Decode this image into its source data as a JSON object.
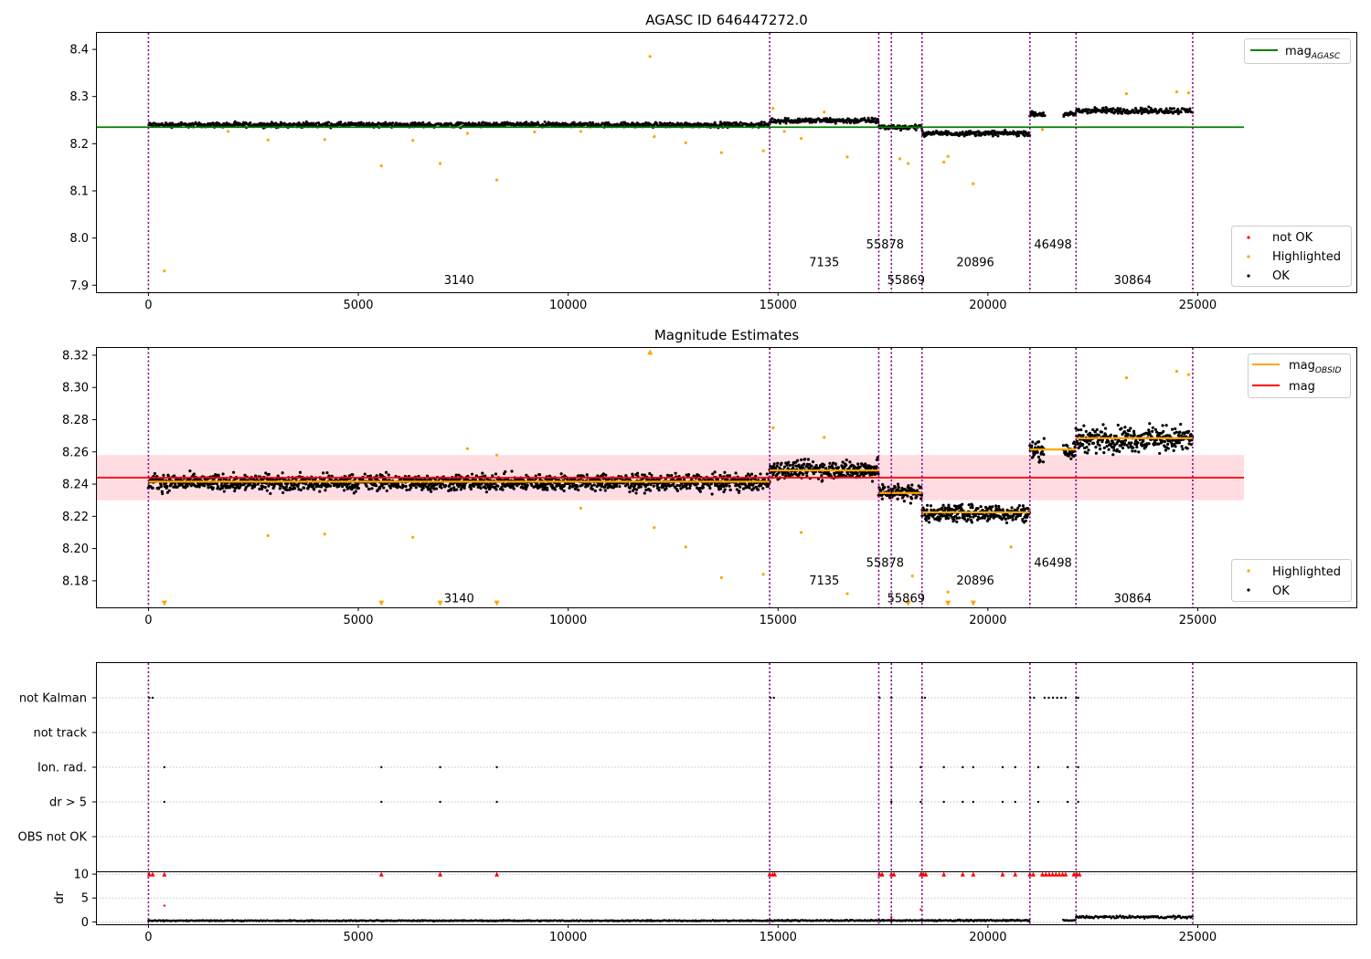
{
  "colors": {
    "ok": "#000000",
    "highlighted": "#ffa500",
    "not_ok": "#ff0000",
    "mag_agasc": "#008000",
    "mag": "#ff0000",
    "mag_obsid": "#ffa500",
    "obsid_line": "#800080",
    "mag_band": "#ffc0cb"
  },
  "chart_data": [
    {
      "type": "scatter",
      "title": "AGASC ID 646447272.0",
      "xlim": [
        -1250,
        28800
      ],
      "ylim": [
        7.885,
        8.435
      ],
      "xticks": [
        0,
        5000,
        10000,
        15000,
        20000,
        25000
      ],
      "yticks": [
        7.9,
        8.0,
        8.1,
        8.2,
        8.3,
        8.4
      ],
      "ytick_labels": [
        "7.9",
        "8.0",
        "8.1",
        "8.2",
        "8.3",
        "8.4"
      ],
      "mag_agasc": 8.235,
      "mag_agasc_xrange": [
        -1250,
        26100
      ],
      "obsid_boundaries": [
        0,
        14800,
        17400,
        17700,
        18430,
        21000,
        22100,
        24880
      ],
      "obsid_labels": [
        {
          "label": "3140",
          "x": 7400,
          "y": 7.91
        },
        {
          "label": "7135",
          "x": 16100,
          "y": 7.948
        },
        {
          "label": "55878",
          "x": 17550,
          "y": 7.986
        },
        {
          "label": "55869",
          "x": 18050,
          "y": 7.91
        },
        {
          "label": "20896",
          "x": 19700,
          "y": 7.948
        },
        {
          "label": "46498",
          "x": 21550,
          "y": 7.986
        },
        {
          "label": "30864",
          "x": 23450,
          "y": 7.91
        }
      ],
      "segments": [
        {
          "x0": 0,
          "x1": 14800,
          "center": 8.24,
          "spread": 0.008
        },
        {
          "x0": 14800,
          "x1": 17400,
          "center": 8.249,
          "spread": 0.009
        },
        {
          "x0": 17400,
          "x1": 18430,
          "center": 8.235,
          "spread": 0.008
        },
        {
          "x0": 18430,
          "x1": 21000,
          "center": 8.222,
          "spread": 0.008
        },
        {
          "x0": 21000,
          "x1": 21350,
          "center": 8.262,
          "spread": 0.009
        },
        {
          "x0": 21800,
          "x1": 22100,
          "center": 8.262,
          "spread": 0.008
        },
        {
          "x0": 22100,
          "x1": 24880,
          "center": 8.27,
          "spread": 0.01
        }
      ],
      "highlighted_points": [
        [
          380,
          7.93
        ],
        [
          5550,
          8.153
        ],
        [
          6950,
          8.158
        ],
        [
          8300,
          8.123
        ],
        [
          11950,
          8.385
        ],
        [
          13650,
          8.181
        ],
        [
          14650,
          8.185
        ],
        [
          15550,
          8.211
        ],
        [
          16650,
          8.172
        ],
        [
          17900,
          8.168
        ],
        [
          18100,
          8.158
        ],
        [
          18950,
          8.161
        ],
        [
          19050,
          8.173
        ],
        [
          19650,
          8.115
        ],
        [
          21300,
          8.23
        ],
        [
          23300,
          8.306
        ],
        [
          24500,
          8.31
        ],
        [
          24780,
          8.308
        ],
        [
          12800,
          8.202
        ],
        [
          12050,
          8.215
        ],
        [
          10300,
          8.226
        ],
        [
          2850,
          8.208
        ],
        [
          4200,
          8.209
        ],
        [
          6300,
          8.207
        ],
        [
          15150,
          8.226
        ],
        [
          9200,
          8.225
        ],
        [
          7600,
          8.222
        ],
        [
          1900,
          8.226
        ],
        [
          14880,
          8.275
        ],
        [
          16100,
          8.267
        ]
      ],
      "legends": [
        {
          "position": "top-right",
          "entries": [
            {
              "label": "mag",
              "sub": "AGASC",
              "marker": "line",
              "color": "#008000"
            }
          ]
        },
        {
          "position": "lower-right",
          "entries": [
            {
              "label": "not OK",
              "marker": "dot",
              "color": "#ff0000"
            },
            {
              "label": "Highlighted",
              "marker": "dot",
              "color": "#ffa500"
            },
            {
              "label": "OK",
              "marker": "dot",
              "color": "#000000"
            }
          ]
        }
      ]
    },
    {
      "type": "scatter",
      "title": "Magnitude Estimates",
      "xlim": [
        -1250,
        28800
      ],
      "ylim": [
        8.1635,
        8.3245
      ],
      "xticks": [
        0,
        5000,
        10000,
        15000,
        20000,
        25000
      ],
      "yticks": [
        8.18,
        8.2,
        8.22,
        8.24,
        8.26,
        8.28,
        8.3,
        8.32
      ],
      "ytick_labels": [
        "8.18",
        "8.20",
        "8.22",
        "8.24",
        "8.26",
        "8.28",
        "8.30",
        "8.32"
      ],
      "mag": 8.244,
      "mag_band": [
        8.23,
        8.258
      ],
      "mag_xrange": [
        -1250,
        26100
      ],
      "mag_obsid": [
        {
          "x0": 0,
          "x1": 14800,
          "value": 8.2415
        },
        {
          "x0": 14800,
          "x1": 17400,
          "value": 8.2485
        },
        {
          "x0": 17400,
          "x1": 18430,
          "value": 8.2345
        },
        {
          "x0": 18430,
          "x1": 21000,
          "value": 8.2225
        },
        {
          "x0": 21000,
          "x1": 22100,
          "value": 8.2615
        },
        {
          "x0": 22100,
          "x1": 24880,
          "value": 8.2685
        }
      ],
      "obsid_boundaries": [
        0,
        14800,
        17400,
        17700,
        18430,
        21000,
        22100,
        24880
      ],
      "obsid_labels": [
        {
          "label": "3140",
          "x": 7400,
          "y": 8.169
        },
        {
          "label": "7135",
          "x": 16100,
          "y": 8.18
        },
        {
          "label": "55878",
          "x": 17550,
          "y": 8.191
        },
        {
          "label": "55869",
          "x": 18050,
          "y": 8.169
        },
        {
          "label": "20896",
          "x": 19700,
          "y": 8.18
        },
        {
          "label": "46498",
          "x": 21550,
          "y": 8.191
        },
        {
          "label": "30864",
          "x": 23450,
          "y": 8.169
        }
      ],
      "segments": [
        {
          "x0": 0,
          "x1": 14800,
          "center": 8.241,
          "spread": 0.008
        },
        {
          "x0": 14800,
          "x1": 17400,
          "center": 8.249,
          "spread": 0.009
        },
        {
          "x0": 17400,
          "x1": 18430,
          "center": 8.235,
          "spread": 0.008
        },
        {
          "x0": 18430,
          "x1": 21000,
          "center": 8.222,
          "spread": 0.008
        },
        {
          "x0": 21000,
          "x1": 21350,
          "center": 8.261,
          "spread": 0.01
        },
        {
          "x0": 21800,
          "x1": 22100,
          "center": 8.261,
          "spread": 0.008
        },
        {
          "x0": 22100,
          "x1": 24880,
          "center": 8.268,
          "spread": 0.012
        }
      ],
      "highlighted_points": [
        [
          13650,
          8.182
        ],
        [
          14650,
          8.184
        ],
        [
          15550,
          8.21
        ],
        [
          16650,
          8.172
        ],
        [
          18200,
          8.183
        ],
        [
          19050,
          8.173
        ],
        [
          20550,
          8.201
        ],
        [
          12800,
          8.201
        ],
        [
          6300,
          8.207
        ],
        [
          2850,
          8.208
        ],
        [
          4200,
          8.209
        ],
        [
          12050,
          8.213
        ],
        [
          10300,
          8.225
        ],
        [
          23300,
          8.306
        ],
        [
          24500,
          8.31
        ],
        [
          24780,
          8.308
        ],
        [
          14880,
          8.275
        ],
        [
          16100,
          8.269
        ],
        [
          8300,
          8.258
        ],
        [
          7600,
          8.262
        ]
      ],
      "triangle_up": [
        [
          11950,
          8.322
        ]
      ],
      "triangle_down": [
        [
          380,
          8.166
        ],
        [
          5550,
          8.166
        ],
        [
          6950,
          8.166
        ],
        [
          8300,
          8.166
        ],
        [
          18100,
          8.166
        ],
        [
          19050,
          8.166
        ],
        [
          19650,
          8.166
        ]
      ],
      "legends": [
        {
          "position": "top-right",
          "entries": [
            {
              "label": "mag",
              "sub": "OBSID",
              "marker": "line",
              "color": "#ffa500"
            },
            {
              "label": "mag",
              "marker": "line",
              "color": "#ff0000"
            }
          ]
        },
        {
          "position": "lower-right",
          "entries": [
            {
              "label": "Highlighted",
              "marker": "dot",
              "color": "#ffa500"
            },
            {
              "label": "OK",
              "marker": "dot",
              "color": "#000000"
            }
          ]
        }
      ]
    },
    {
      "type": "scatter",
      "xlim": [
        -1250,
        28800
      ],
      "xticks": [
        0,
        5000,
        10000,
        15000,
        20000,
        25000
      ],
      "flag_rows": [
        "not Kalman",
        "not track",
        "Ion. rad.",
        "dr > 5",
        "OBS not OK"
      ],
      "obsid_boundaries": [
        0,
        14800,
        17400,
        17700,
        18430,
        21000,
        22100,
        24880
      ],
      "flag_points": {
        "not Kalman": [
          [
            20,
            0
          ],
          [
            100,
            0
          ],
          [
            14820,
            0
          ],
          [
            14900,
            0
          ],
          [
            17420,
            0
          ],
          [
            17700,
            0
          ],
          [
            18430,
            0
          ],
          [
            18500,
            0
          ],
          [
            21010,
            0
          ],
          [
            21100,
            0
          ],
          [
            21350,
            0
          ],
          [
            21450,
            0
          ],
          [
            21550,
            0
          ],
          [
            21650,
            0
          ],
          [
            21750,
            0
          ],
          [
            21850,
            0
          ],
          [
            22100,
            0
          ],
          [
            22150,
            0
          ]
        ],
        "Ion. rad.": [
          [
            380,
            0
          ],
          [
            5550,
            0
          ],
          [
            6950,
            0
          ],
          [
            8300,
            0
          ],
          [
            17700,
            0
          ],
          [
            18400,
            0
          ],
          [
            18950,
            0
          ],
          [
            19400,
            0
          ],
          [
            19650,
            0
          ],
          [
            20350,
            0
          ],
          [
            20650,
            0
          ],
          [
            21200,
            0
          ],
          [
            21900,
            0
          ],
          [
            22150,
            0
          ]
        ],
        "dr > 5": [
          [
            380,
            0
          ],
          [
            5550,
            0
          ],
          [
            6950,
            0
          ],
          [
            8300,
            0
          ],
          [
            17700,
            0
          ],
          [
            18400,
            0
          ],
          [
            18950,
            0
          ],
          [
            19400,
            0
          ],
          [
            19650,
            0
          ],
          [
            20350,
            0
          ],
          [
            20650,
            0
          ],
          [
            21200,
            0
          ],
          [
            21900,
            0
          ],
          [
            22150,
            0
          ]
        ]
      },
      "dr": {
        "ylabel": "dr",
        "ylim": [
          -0.5,
          10.4
        ],
        "yticks": [
          0,
          5,
          10
        ],
        "ytick_labels": [
          "0",
          "5",
          "10"
        ],
        "clipped_points": [
          [
            20,
            10
          ],
          [
            100,
            10
          ],
          [
            380,
            10
          ],
          [
            5550,
            10
          ],
          [
            6950,
            10
          ],
          [
            8300,
            10
          ],
          [
            14800,
            10
          ],
          [
            14870,
            10
          ],
          [
            14920,
            10
          ],
          [
            17420,
            10
          ],
          [
            17480,
            10
          ],
          [
            17700,
            10
          ],
          [
            17760,
            10
          ],
          [
            18400,
            10
          ],
          [
            18470,
            10
          ],
          [
            18520,
            10
          ],
          [
            18950,
            10
          ],
          [
            19400,
            10
          ],
          [
            19650,
            10
          ],
          [
            20350,
            10
          ],
          [
            20650,
            10
          ],
          [
            21000,
            10
          ],
          [
            21080,
            10
          ],
          [
            21300,
            10
          ],
          [
            21380,
            10
          ],
          [
            21460,
            10
          ],
          [
            21540,
            10
          ],
          [
            21620,
            10
          ],
          [
            21700,
            10
          ],
          [
            21780,
            10
          ],
          [
            21850,
            10
          ],
          [
            22050,
            10
          ],
          [
            22120,
            10
          ],
          [
            22180,
            10
          ]
        ],
        "extra_points": [
          [
            380,
            3.4
          ],
          [
            18400,
            2.6
          ],
          [
            17700,
            1.0
          ]
        ],
        "segments": [
          {
            "x0": 0,
            "x1": 14800,
            "center": 0.25,
            "spread": 0.18
          },
          {
            "x0": 14800,
            "x1": 21000,
            "center": 0.3,
            "spread": 0.22
          },
          {
            "x0": 21800,
            "x1": 22100,
            "center": 0.3,
            "spread": 0.2
          },
          {
            "x0": 22100,
            "x1": 24880,
            "center": 1.0,
            "spread": 0.45
          }
        ]
      }
    }
  ]
}
